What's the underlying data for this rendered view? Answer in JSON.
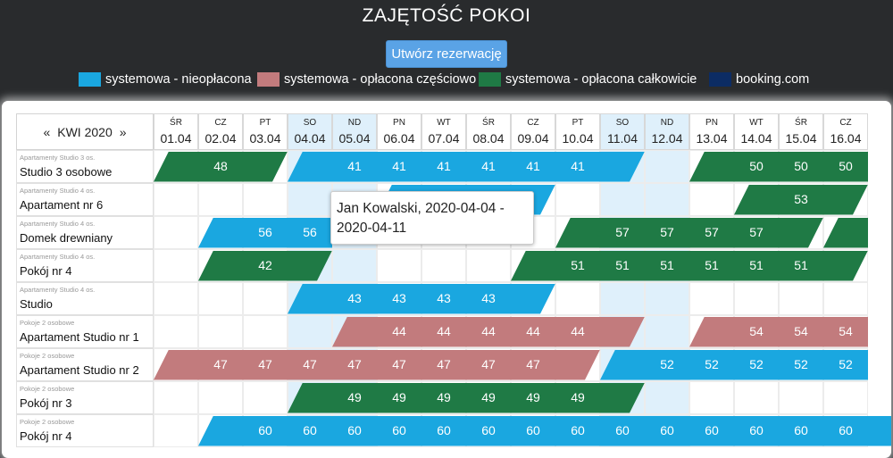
{
  "title": "ZAJĘTOŚĆ POKOI",
  "create_button": "Utwórz rezerwację",
  "legend": [
    {
      "label": "systemowa - nieopłacona",
      "color": "#1aa7e0"
    },
    {
      "label": "systemowa - opłacona częściowo",
      "color": "#c27b7d"
    },
    {
      "label": "systemowa - opłacona całkowicie",
      "color": "#1f7a45"
    },
    {
      "label": "booking.com",
      "color": "#0c2c63"
    }
  ],
  "calendar": {
    "month_label": "KWI 2020",
    "prev_arrow": "«",
    "next_arrow": "»",
    "days": [
      {
        "name": "ŚR",
        "date": "01.04",
        "weekend": false
      },
      {
        "name": "CZ",
        "date": "02.04",
        "weekend": false
      },
      {
        "name": "PT",
        "date": "03.04",
        "weekend": false
      },
      {
        "name": "SO",
        "date": "04.04",
        "weekend": true
      },
      {
        "name": "ND",
        "date": "05.04",
        "weekend": true
      },
      {
        "name": "PN",
        "date": "06.04",
        "weekend": false
      },
      {
        "name": "WT",
        "date": "07.04",
        "weekend": false
      },
      {
        "name": "ŚR",
        "date": "08.04",
        "weekend": false
      },
      {
        "name": "CZ",
        "date": "09.04",
        "weekend": false
      },
      {
        "name": "PT",
        "date": "10.04",
        "weekend": false
      },
      {
        "name": "SO",
        "date": "11.04",
        "weekend": true
      },
      {
        "name": "ND",
        "date": "12.04",
        "weekend": true
      },
      {
        "name": "PN",
        "date": "13.04",
        "weekend": false
      },
      {
        "name": "WT",
        "date": "14.04",
        "weekend": false
      },
      {
        "name": "ŚR",
        "date": "15.04",
        "weekend": false
      },
      {
        "name": "CZ",
        "date": "16.04",
        "weekend": false
      }
    ]
  },
  "rooms": [
    {
      "category": "Apartamenty Studio 3 os.",
      "name": "Studio 3 osobowe"
    },
    {
      "category": "Apartamenty Studio 4 os.",
      "name": "Apartament nr 6"
    },
    {
      "category": "Apartamenty Studio 4 os.",
      "name": "Domek drewniany"
    },
    {
      "category": "Apartamenty Studio 4 os.",
      "name": "Pokój nr 4"
    },
    {
      "category": "Apartamenty Studio 4 os.",
      "name": "Studio"
    },
    {
      "category": "Pokoje 2 osobowe",
      "name": "Apartament Studio nr 1"
    },
    {
      "category": "Pokoje 2 osobowe",
      "name": "Apartament Studio nr 2"
    },
    {
      "category": "Pokoje 2 osobowe",
      "name": "Pokój nr 3"
    },
    {
      "category": "Pokoje 2 osobowe",
      "name": "Pokój nr 4"
    }
  ],
  "reservations": [
    {
      "room": 0,
      "status": "full",
      "labels": [
        "",
        "48",
        ""
      ]
    },
    {
      "room": 0,
      "status": "unpaid",
      "labels": [
        "",
        "41",
        "41",
        "41",
        "41",
        "41",
        "41",
        ""
      ]
    },
    {
      "room": 0,
      "status": "full",
      "labels": [
        "",
        "50",
        "50",
        "50"
      ]
    },
    {
      "room": 1,
      "status": "unpaid",
      "labels": [
        "5",
        "45",
        "45",
        ""
      ]
    },
    {
      "room": 1,
      "status": "full",
      "labels": [
        "",
        "53",
        ""
      ]
    },
    {
      "room": 2,
      "status": "unpaid",
      "labels": [
        "",
        "56",
        "56"
      ]
    },
    {
      "room": 2,
      "status": "full",
      "labels": [
        "",
        "57",
        "57",
        "57",
        "57",
        ""
      ]
    },
    {
      "room": 2,
      "status": "full",
      "labels": [
        ""
      ]
    },
    {
      "room": 3,
      "status": "full",
      "labels": [
        "",
        "42",
        ""
      ]
    },
    {
      "room": 3,
      "status": "full",
      "labels": [
        "",
        "51",
        "51",
        "51",
        "51",
        "51",
        "51",
        ""
      ]
    },
    {
      "room": 4,
      "status": "unpaid",
      "labels": [
        "",
        "43",
        "43",
        "43",
        "43",
        ""
      ]
    },
    {
      "room": 5,
      "status": "partial",
      "labels": [
        "",
        "44",
        "44",
        "44",
        "44",
        "44",
        ""
      ]
    },
    {
      "room": 5,
      "status": "partial",
      "labels": [
        "",
        "54",
        "54",
        "54"
      ]
    },
    {
      "room": 6,
      "status": "partial",
      "labels": [
        "",
        "47",
        "47",
        "47",
        "47",
        "47",
        "47",
        "47",
        "47",
        ""
      ]
    },
    {
      "room": 6,
      "status": "unpaid",
      "labels": [
        "",
        "52",
        "52",
        "52",
        "52",
        "52"
      ]
    },
    {
      "room": 7,
      "status": "full",
      "labels": [
        "",
        "49",
        "49",
        "49",
        "49",
        "49",
        "49",
        ""
      ]
    },
    {
      "room": 8,
      "status": "unpaid",
      "labels": [
        "",
        "60",
        "60",
        "60",
        "60",
        "60",
        "60",
        "60",
        "60",
        "60",
        "60",
        "60",
        "60",
        "60",
        "60"
      ]
    }
  ],
  "tooltip": {
    "line1": "Jan Kowalski, 2020-04-04 -",
    "line2": "2020-04-11"
  }
}
